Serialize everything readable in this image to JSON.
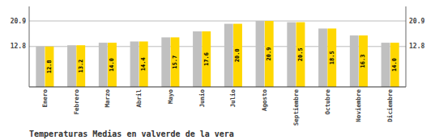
{
  "chart_data": {
    "type": "bar",
    "title": "Temperaturas Medias en valverde de la vera",
    "categories": [
      "Enero",
      "Febrero",
      "Marzo",
      "Abril",
      "Mayo",
      "Junio",
      "Julio",
      "Agosto",
      "Septiembre",
      "Octubre",
      "Noviembre",
      "Diciembre"
    ],
    "series": [
      {
        "color": "#C0C0C0",
        "values": [
          12.8,
          13.2,
          14.0,
          14.4,
          15.7,
          17.6,
          20.0,
          20.9,
          20.5,
          18.5,
          16.3,
          14.0
        ]
      },
      {
        "color": "#FFD700",
        "values": [
          12.8,
          13.2,
          14.0,
          14.4,
          15.7,
          17.6,
          20.0,
          20.9,
          20.5,
          18.5,
          16.3,
          14.0
        ],
        "data_labels": true,
        "value_labels": [
          "12.8",
          "13.2",
          "14.0",
          "14.4",
          "15.7",
          "17.6",
          "20.0",
          "20.9",
          "20.5",
          "18.5",
          "16.3",
          "14.0"
        ]
      }
    ],
    "ylim": [
      0,
      25.498
    ],
    "yticks": [
      12.8,
      20.9
    ],
    "y2lim": [
      0,
      25.498
    ],
    "y2ticks": [
      12.8,
      20.9
    ],
    "grid": true
  }
}
